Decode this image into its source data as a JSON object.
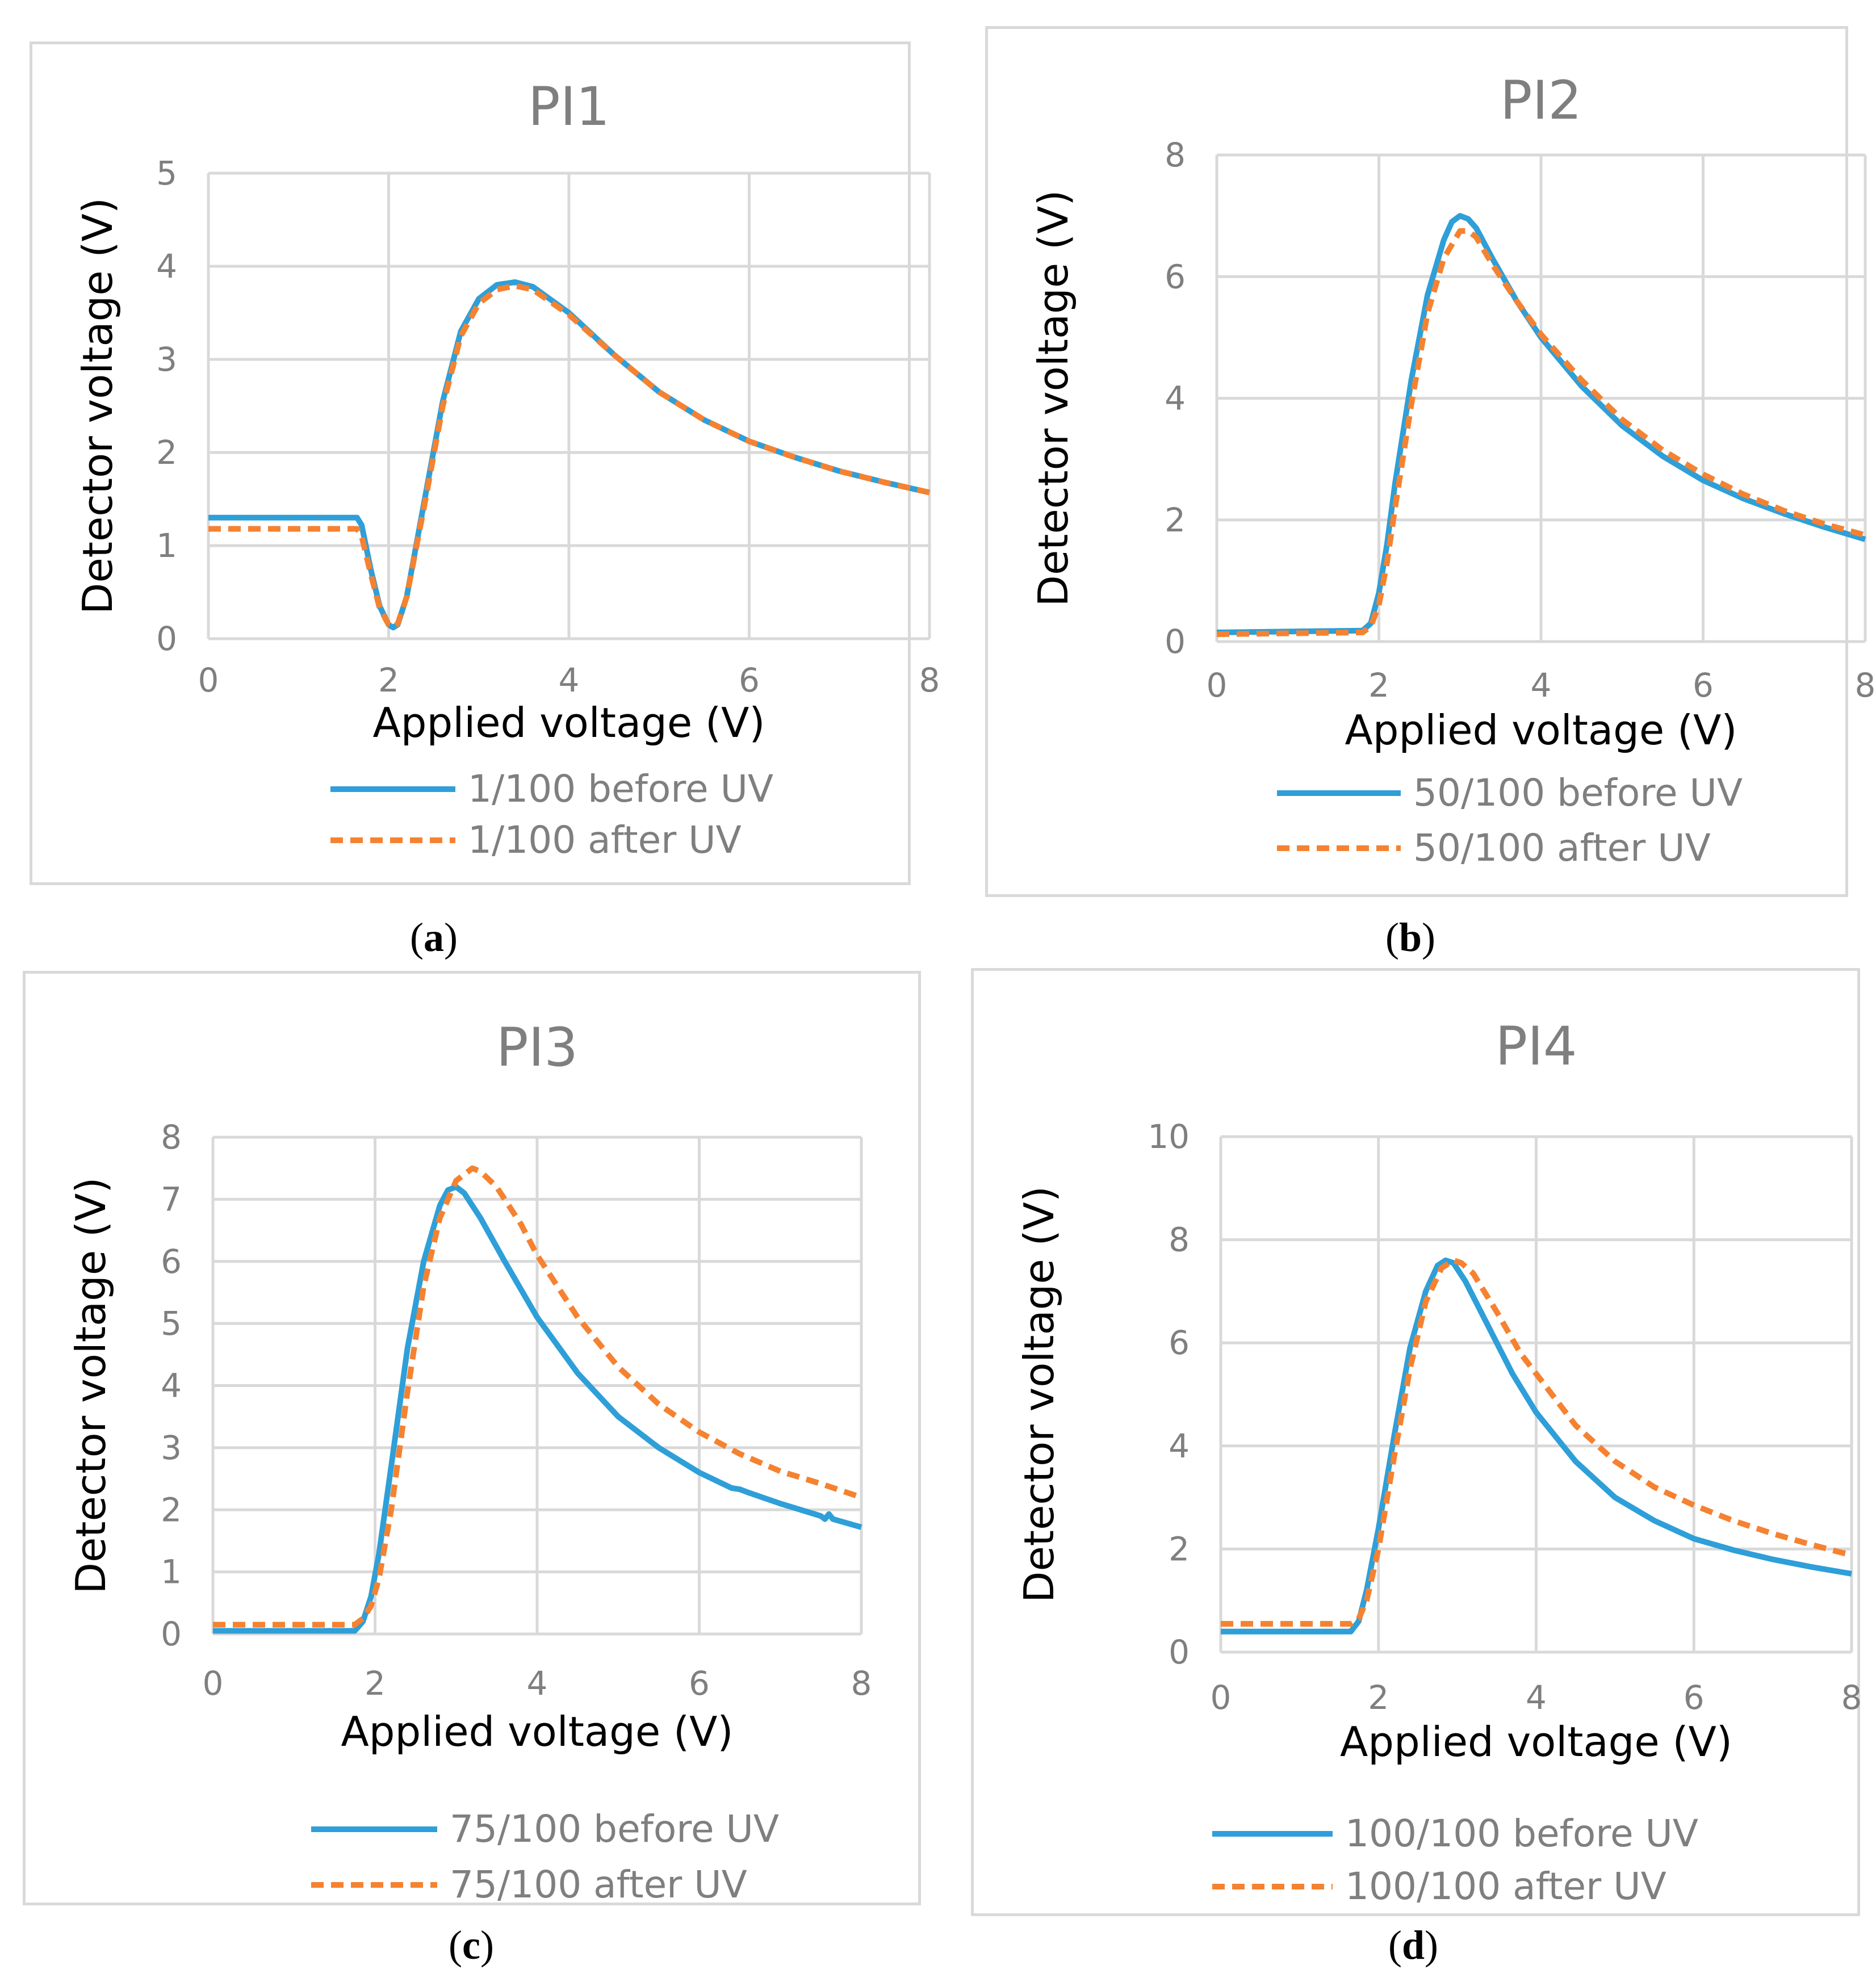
{
  "colors": {
    "before": "#2e9fd8",
    "after": "#f58231",
    "grid": "#d9d9d9",
    "text": "#7f7f7f"
  },
  "chart_data": [
    {
      "id": "a",
      "type": "line",
      "title": "PI1",
      "caption": [
        "(",
        "a",
        ")"
      ],
      "xlabel": "Applied voltage (V)",
      "ylabel": "Detector voltage (V)",
      "xlim": [
        0,
        8
      ],
      "ylim": [
        0,
        5
      ],
      "xticks": [
        0,
        2,
        4,
        6,
        8
      ],
      "yticks": [
        0,
        1,
        2,
        3,
        4,
        5
      ],
      "legend_position": "bottom",
      "series": [
        {
          "name": "1/100 before UV",
          "style": "solid",
          "x": [
            0,
            1.65,
            1.7,
            1.8,
            1.9,
            2.0,
            2.05,
            2.1,
            2.2,
            2.4,
            2.6,
            2.8,
            3.0,
            3.2,
            3.4,
            3.6,
            4.0,
            4.5,
            5.0,
            5.5,
            6.0,
            6.5,
            7.0,
            7.5,
            8.0
          ],
          "y": [
            1.3,
            1.3,
            1.22,
            0.75,
            0.35,
            0.15,
            0.12,
            0.15,
            0.45,
            1.5,
            2.55,
            3.3,
            3.65,
            3.8,
            3.83,
            3.78,
            3.5,
            3.05,
            2.65,
            2.35,
            2.12,
            1.95,
            1.8,
            1.68,
            1.57
          ]
        },
        {
          "name": "1/100 after UV",
          "style": "dashed",
          "x": [
            0,
            1.65,
            1.7,
            1.8,
            1.9,
            2.0,
            2.05,
            2.1,
            2.2,
            2.4,
            2.6,
            2.8,
            3.0,
            3.2,
            3.4,
            3.6,
            4.0,
            4.5,
            5.0,
            5.5,
            6.0,
            6.5,
            7.0,
            7.5,
            8.0
          ],
          "y": [
            1.18,
            1.18,
            1.1,
            0.7,
            0.33,
            0.15,
            0.13,
            0.16,
            0.45,
            1.45,
            2.5,
            3.25,
            3.6,
            3.75,
            3.79,
            3.75,
            3.48,
            3.05,
            2.65,
            2.35,
            2.12,
            1.95,
            1.8,
            1.68,
            1.57
          ]
        }
      ]
    },
    {
      "id": "b",
      "type": "line",
      "title": "PI2",
      "caption": [
        "(",
        "b",
        ")"
      ],
      "xlabel": "Applied voltage (V)",
      "ylabel": "Detector voltage (V)",
      "xlim": [
        0,
        8
      ],
      "ylim": [
        0,
        8
      ],
      "xticks": [
        0,
        2,
        4,
        6,
        8
      ],
      "yticks": [
        0,
        2,
        4,
        6,
        8
      ],
      "legend_position": "bottom",
      "series": [
        {
          "name": "50/100 before UV",
          "style": "solid",
          "x": [
            0,
            1.8,
            1.9,
            2.0,
            2.1,
            2.2,
            2.4,
            2.6,
            2.8,
            2.9,
            3.0,
            3.1,
            3.2,
            3.4,
            3.7,
            4.0,
            4.5,
            5.0,
            5.5,
            6.0,
            6.5,
            7.0,
            7.5,
            8.0
          ],
          "y": [
            0.15,
            0.18,
            0.3,
            0.8,
            1.6,
            2.6,
            4.3,
            5.7,
            6.6,
            6.9,
            7.0,
            6.95,
            6.8,
            6.3,
            5.6,
            5.0,
            4.2,
            3.55,
            3.05,
            2.65,
            2.35,
            2.1,
            1.88,
            1.68
          ]
        },
        {
          "name": "50/100 after UV",
          "style": "dashed",
          "x": [
            0,
            1.8,
            1.9,
            2.0,
            2.1,
            2.2,
            2.4,
            2.6,
            2.8,
            3.0,
            3.1,
            3.2,
            3.4,
            3.7,
            4.0,
            4.5,
            5.0,
            5.5,
            6.0,
            6.5,
            7.0,
            7.5,
            8.0
          ],
          "y": [
            0.12,
            0.15,
            0.25,
            0.6,
            1.3,
            2.2,
            3.9,
            5.4,
            6.3,
            6.75,
            6.75,
            6.65,
            6.2,
            5.6,
            5.05,
            4.3,
            3.65,
            3.15,
            2.75,
            2.42,
            2.15,
            1.93,
            1.75
          ]
        }
      ]
    },
    {
      "id": "c",
      "type": "line",
      "title": "PI3",
      "caption": [
        "(",
        "c",
        ")"
      ],
      "xlabel": "Applied voltage (V)",
      "ylabel": "Detector voltage (V)",
      "xlim": [
        0,
        8
      ],
      "ylim": [
        0,
        8
      ],
      "xticks": [
        0,
        2,
        4,
        6,
        8
      ],
      "yticks": [
        0,
        1,
        2,
        3,
        4,
        5,
        6,
        7,
        8
      ],
      "legend_position": "bottom",
      "series": [
        {
          "name": "75/100 before UV",
          "style": "solid",
          "x": [
            0,
            1.75,
            1.85,
            1.95,
            2.05,
            2.2,
            2.4,
            2.6,
            2.8,
            2.9,
            3.0,
            3.1,
            3.3,
            3.6,
            4.0,
            4.5,
            5.0,
            5.5,
            6.0,
            6.4,
            6.5,
            6.6,
            7.0,
            7.5,
            7.55,
            7.6,
            7.65,
            8.0
          ],
          "y": [
            0.05,
            0.05,
            0.2,
            0.6,
            1.3,
            2.7,
            4.6,
            6.0,
            6.9,
            7.15,
            7.2,
            7.1,
            6.7,
            6.0,
            5.1,
            4.2,
            3.5,
            3.0,
            2.6,
            2.35,
            2.33,
            2.28,
            2.1,
            1.9,
            1.85,
            1.93,
            1.85,
            1.72
          ]
        },
        {
          "name": "75/100 after UV",
          "style": "dashed",
          "x": [
            0,
            1.75,
            1.85,
            1.95,
            2.05,
            2.2,
            2.4,
            2.6,
            2.8,
            3.0,
            3.2,
            3.3,
            3.5,
            3.8,
            4.0,
            4.5,
            5.0,
            5.5,
            6.0,
            6.5,
            7.0,
            7.5,
            8.0
          ],
          "y": [
            0.15,
            0.15,
            0.25,
            0.45,
            0.9,
            2.0,
            3.9,
            5.6,
            6.7,
            7.3,
            7.5,
            7.45,
            7.2,
            6.6,
            6.1,
            5.1,
            4.3,
            3.7,
            3.25,
            2.9,
            2.62,
            2.42,
            2.2
          ]
        }
      ]
    },
    {
      "id": "d",
      "type": "line",
      "title": "PI4",
      "caption": [
        "(",
        "d",
        ")"
      ],
      "xlabel": "Applied voltage (V)",
      "ylabel": "Detector voltage (V)",
      "xlim": [
        0,
        8
      ],
      "ylim": [
        0,
        10
      ],
      "xticks": [
        0,
        2,
        4,
        6,
        8
      ],
      "yticks": [
        0,
        2,
        4,
        6,
        8,
        10
      ],
      "legend_position": "bottom",
      "series": [
        {
          "name": "100/100 before UV",
          "style": "solid",
          "x": [
            0,
            1.65,
            1.75,
            1.85,
            2.0,
            2.2,
            2.4,
            2.6,
            2.75,
            2.85,
            2.95,
            3.1,
            3.4,
            3.7,
            4.0,
            4.5,
            5.0,
            5.5,
            6.0,
            6.5,
            7.0,
            7.5,
            8.0
          ],
          "y": [
            0.4,
            0.4,
            0.6,
            1.2,
            2.4,
            4.2,
            5.9,
            7.0,
            7.5,
            7.6,
            7.55,
            7.2,
            6.3,
            5.4,
            4.65,
            3.7,
            3.0,
            2.55,
            2.2,
            1.98,
            1.8,
            1.65,
            1.52
          ]
        },
        {
          "name": "100/100 after UV",
          "style": "dashed",
          "x": [
            0,
            1.65,
            1.75,
            1.85,
            2.0,
            2.2,
            2.4,
            2.6,
            2.8,
            2.95,
            3.05,
            3.2,
            3.5,
            3.8,
            4.0,
            4.5,
            5.0,
            5.5,
            6.0,
            6.5,
            7.0,
            7.5,
            8.0
          ],
          "y": [
            0.55,
            0.55,
            0.65,
            1.0,
            2.0,
            3.8,
            5.5,
            6.8,
            7.45,
            7.6,
            7.55,
            7.35,
            6.6,
            5.8,
            5.4,
            4.4,
            3.7,
            3.2,
            2.85,
            2.55,
            2.3,
            2.08,
            1.88
          ]
        }
      ]
    }
  ]
}
